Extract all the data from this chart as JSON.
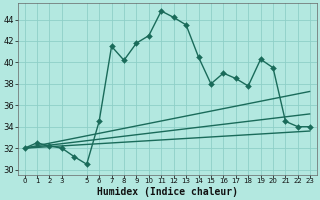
{
  "xlabel": "Humidex (Indice chaleur)",
  "bg_color": "#b3e8e0",
  "grid_color": "#8ecfc7",
  "line_color": "#1a6b5a",
  "xlim": [
    -0.5,
    23.5
  ],
  "ylim": [
    29.5,
    45.5
  ],
  "yticks": [
    30,
    32,
    34,
    36,
    38,
    40,
    42,
    44
  ],
  "xtick_positions": [
    0,
    1,
    2,
    3,
    5,
    6,
    7,
    8,
    9,
    10,
    11,
    12,
    13,
    14,
    15,
    16,
    17,
    18,
    19,
    20,
    21,
    22,
    23
  ],
  "xtick_labels": [
    "0",
    "1",
    "2",
    "3",
    "5",
    "6",
    "7",
    "8",
    "9",
    "10",
    "11",
    "12",
    "13",
    "14",
    "15",
    "16",
    "17",
    "18",
    "19",
    "20",
    "21",
    "22",
    "23"
  ],
  "main_line_x": [
    0,
    1,
    2,
    3,
    4,
    5,
    6,
    7,
    8,
    9,
    10,
    11,
    12,
    13,
    14,
    15,
    16,
    17,
    18,
    19,
    20,
    21,
    22,
    23
  ],
  "main_line_y": [
    32.0,
    32.5,
    32.2,
    32.0,
    31.2,
    30.5,
    34.5,
    41.5,
    40.2,
    41.8,
    42.5,
    44.8,
    44.2,
    43.5,
    40.5,
    38.0,
    39.0,
    38.5,
    37.8,
    40.3,
    39.5,
    34.5,
    34.0,
    34.0
  ],
  "trend_line1_x": [
    0,
    23
  ],
  "trend_line1_y": [
    32.0,
    37.3
  ],
  "trend_line2_x": [
    0,
    23
  ],
  "trend_line2_y": [
    32.0,
    35.2
  ],
  "trend_line3_x": [
    0,
    23
  ],
  "trend_line3_y": [
    32.0,
    33.6
  ],
  "markersize": 3.0,
  "linewidth": 1.0
}
